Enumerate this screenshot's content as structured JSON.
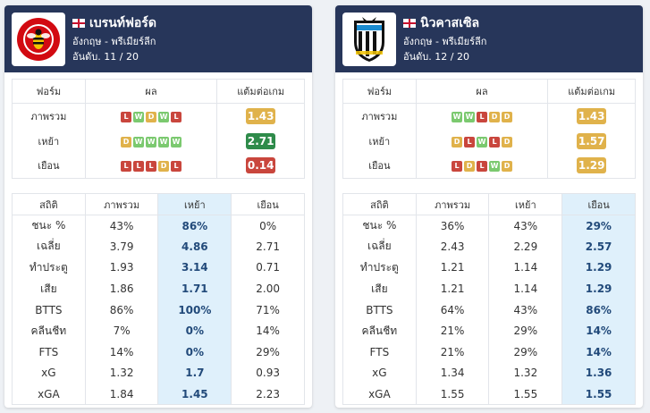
{
  "colors": {
    "header_bg": "#27365a",
    "win": "#7bc96f",
    "draw": "#e0b24b",
    "loss": "#c9463d",
    "ppg_mid": "#e0b24b",
    "ppg_good": "#2e8b4a",
    "ppg_bad": "#c9463d",
    "highlight_col": "#dff0fb"
  },
  "teams": [
    {
      "name": "เบรนท์ฟอร์ด",
      "flag_icon": "england-flag-icon",
      "logo_icon": "brentford-bee-crest-icon",
      "league": "อังกฤษ - พรีเมียร์ลีก",
      "rank": "อันดับ. 11 / 20",
      "form_headers": [
        "ฟอร์ม",
        "ผล",
        "แต้มต่อเกม"
      ],
      "form_rows": [
        {
          "label": "ภาพรวม",
          "results": [
            "L",
            "W",
            "D",
            "W",
            "L"
          ],
          "ppg": "1.43",
          "ppg_color": "#e0b24b"
        },
        {
          "label": "เหย้า",
          "results": [
            "D",
            "W",
            "W",
            "W",
            "W"
          ],
          "ppg": "2.71",
          "ppg_color": "#2e8b4a"
        },
        {
          "label": "เยือน",
          "results": [
            "L",
            "L",
            "L",
            "D",
            "L"
          ],
          "ppg": "0.14",
          "ppg_color": "#c9463d"
        }
      ],
      "stats_headers": [
        "สถิติ",
        "ภาพรวม",
        "เหย้า",
        "เยือน"
      ],
      "highlight_col": 2,
      "stats_rows": [
        [
          "ชนะ %",
          "43%",
          "86%",
          "0%"
        ],
        [
          "เฉลี่ย",
          "3.79",
          "4.86",
          "2.71"
        ],
        [
          "ทำประตู",
          "1.93",
          "3.14",
          "0.71"
        ],
        [
          "เสีย",
          "1.86",
          "1.71",
          "2.00"
        ],
        [
          "BTTS",
          "86%",
          "100%",
          "71%"
        ],
        [
          "คลีนชีท",
          "7%",
          "0%",
          "14%"
        ],
        [
          "FTS",
          "14%",
          "0%",
          "29%"
        ],
        [
          "xG",
          "1.32",
          "1.7",
          "0.93"
        ],
        [
          "xGA",
          "1.84",
          "1.45",
          "2.23"
        ]
      ]
    },
    {
      "name": "นิวคาสเซิล",
      "flag_icon": "england-flag-icon",
      "logo_icon": "newcastle-magpies-crest-icon",
      "league": "อังกฤษ - พรีเมียร์ลีก",
      "rank": "อันดับ. 12 / 20",
      "form_headers": [
        "ฟอร์ม",
        "ผล",
        "แต้มต่อเกม"
      ],
      "form_rows": [
        {
          "label": "ภาพรวม",
          "results": [
            "W",
            "W",
            "L",
            "D",
            "D"
          ],
          "ppg": "1.43",
          "ppg_color": "#e0b24b"
        },
        {
          "label": "เหย้า",
          "results": [
            "D",
            "L",
            "W",
            "L",
            "D"
          ],
          "ppg": "1.57",
          "ppg_color": "#e0b24b"
        },
        {
          "label": "เยือน",
          "results": [
            "L",
            "D",
            "L",
            "W",
            "D"
          ],
          "ppg": "1.29",
          "ppg_color": "#e0b24b"
        }
      ],
      "stats_headers": [
        "สถิติ",
        "ภาพรวม",
        "เหย้า",
        "เยือน"
      ],
      "highlight_col": 3,
      "stats_rows": [
        [
          "ชนะ %",
          "36%",
          "43%",
          "29%"
        ],
        [
          "เฉลี่ย",
          "2.43",
          "2.29",
          "2.57"
        ],
        [
          "ทำประตู",
          "1.21",
          "1.14",
          "1.29"
        ],
        [
          "เสีย",
          "1.21",
          "1.14",
          "1.29"
        ],
        [
          "BTTS",
          "64%",
          "43%",
          "86%"
        ],
        [
          "คลีนชีท",
          "21%",
          "29%",
          "14%"
        ],
        [
          "FTS",
          "21%",
          "29%",
          "14%"
        ],
        [
          "xG",
          "1.34",
          "1.32",
          "1.36"
        ],
        [
          "xGA",
          "1.55",
          "1.55",
          "1.55"
        ]
      ]
    }
  ]
}
